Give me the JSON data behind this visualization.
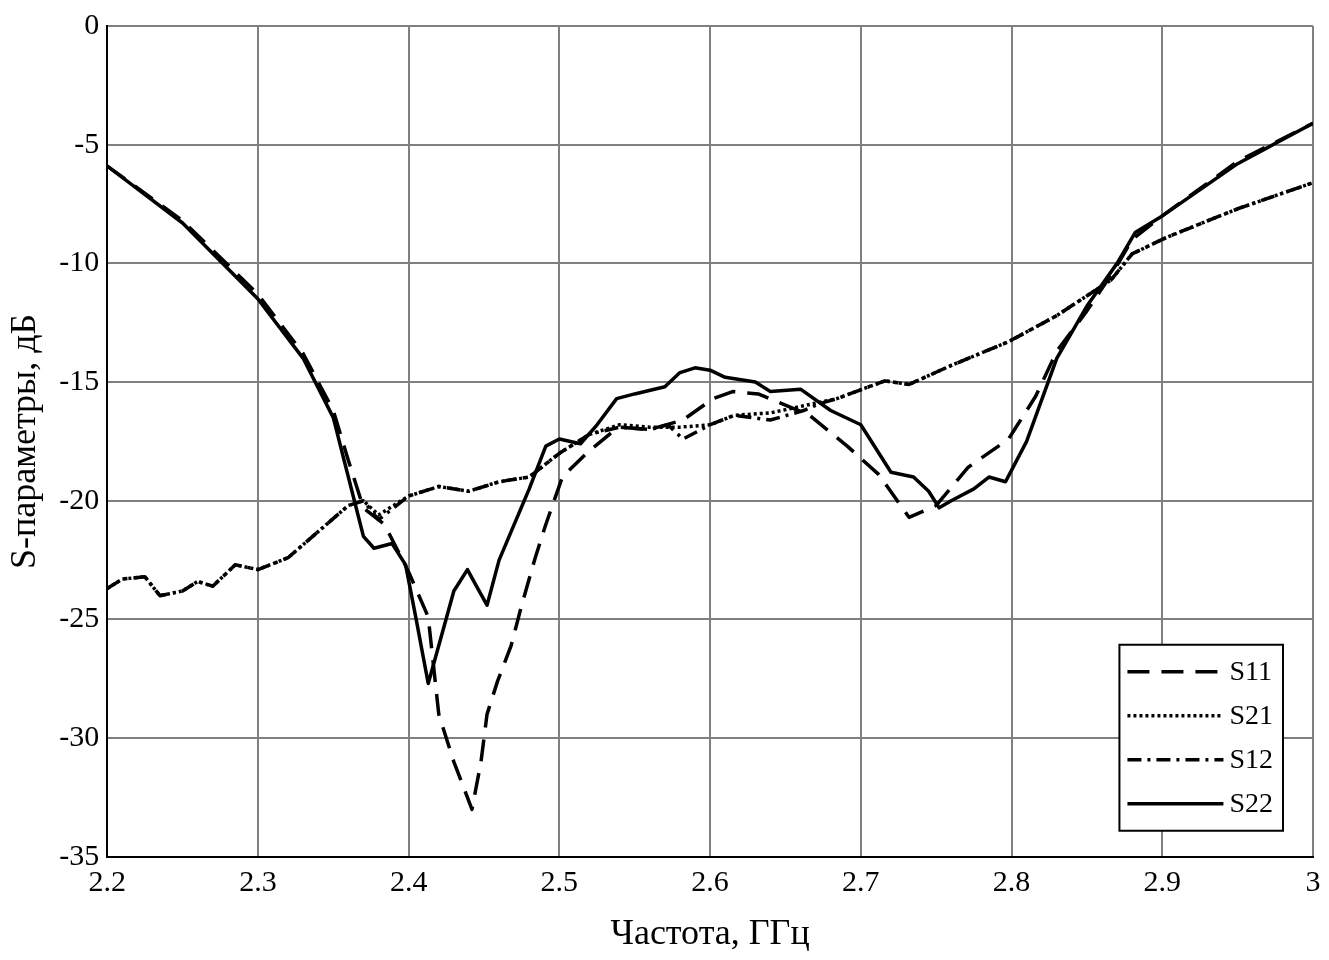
{
  "chart_data": {
    "type": "line",
    "xlabel": "Частота, ГГц",
    "ylabel": "S-параметры, дБ",
    "xlim": [
      2.2,
      3
    ],
    "xticks": [
      {
        "value": 2.2,
        "label": "2.2"
      },
      {
        "value": 2.3,
        "label": "2.3"
      },
      {
        "value": 2.4,
        "label": "2.4"
      },
      {
        "value": 2.5,
        "label": "2.5"
      },
      {
        "value": 2.6,
        "label": "2.6"
      },
      {
        "value": 2.7,
        "label": "2.7"
      },
      {
        "value": 2.8,
        "label": "2.8"
      },
      {
        "value": 2.9,
        "label": "2.9"
      },
      3
    ],
    "ylim": [
      -35,
      0
    ],
    "yticks": [
      -35,
      -30,
      -25,
      -20,
      -15,
      -10,
      -5,
      0
    ],
    "grid": true,
    "legend": "bottom right",
    "marker": "none",
    "series": [
      {
        "name": "S11",
        "color": "#000000",
        "line_style": "dashed",
        "x": [
          2.2,
          2.25,
          2.3,
          2.33,
          2.35,
          2.36,
          2.37,
          2.384,
          2.4,
          2.413,
          2.42,
          2.43,
          2.442,
          2.448,
          2.452,
          2.459,
          2.468,
          2.475,
          2.484,
          2.491,
          2.502,
          2.518,
          2.539,
          2.56,
          2.582,
          2.602,
          2.615,
          2.632,
          2.666,
          2.691,
          2.712,
          2.732,
          2.75,
          2.771,
          2.798,
          2.816,
          2.83,
          2.85,
          2.868,
          2.88,
          2.9,
          2.95,
          3.0
        ],
        "values": [
          -5.9,
          -8.2,
          -11.3,
          -13.8,
          -16.2,
          -18.3,
          -20.3,
          -21.0,
          -23.0,
          -24.9,
          -29.0,
          -31.0,
          -33.0,
          -31.0,
          -29.0,
          -27.6,
          -26.1,
          -24.4,
          -22.4,
          -21.0,
          -19.0,
          -18.0,
          -16.9,
          -17.0,
          -16.6,
          -15.7,
          -15.4,
          -15.5,
          -16.4,
          -17.7,
          -18.9,
          -20.7,
          -20.2,
          -18.6,
          -17.4,
          -15.6,
          -13.7,
          -12.0,
          -10.3,
          -9.0,
          -8.0,
          -5.7,
          -4.1
        ]
      },
      {
        "name": "S21",
        "color": "#000000",
        "line_style": "dotted",
        "x": [
          2.2,
          2.21,
          2.225,
          2.235,
          2.25,
          2.26,
          2.27,
          2.285,
          2.3,
          2.32,
          2.34,
          2.36,
          2.37,
          2.38,
          2.4,
          2.42,
          2.44,
          2.46,
          2.48,
          2.5,
          2.52,
          2.54,
          2.56,
          2.58,
          2.6,
          2.616,
          2.64,
          2.662,
          2.684,
          2.716,
          2.732,
          2.76,
          2.798,
          2.83,
          2.866,
          2.88,
          2.903,
          2.95,
          3.0
        ],
        "values": [
          -23.7,
          -23.3,
          -23.2,
          -24.0,
          -23.8,
          -23.4,
          -23.6,
          -22.7,
          -22.9,
          -22.4,
          -21.3,
          -20.2,
          -20.0,
          -20.6,
          -19.8,
          -19.4,
          -19.6,
          -19.2,
          -19.0,
          -18.0,
          -17.2,
          -16.8,
          -16.9,
          -16.9,
          -16.8,
          -16.4,
          -16.3,
          -16.0,
          -15.7,
          -14.95,
          -15.1,
          -14.3,
          -13.3,
          -12.2,
          -10.7,
          -9.6,
          -8.9,
          -7.7,
          -6.6
        ]
      },
      {
        "name": "S12",
        "color": "#000000",
        "line_style": "dashdot",
        "x": [
          2.2,
          2.21,
          2.225,
          2.235,
          2.25,
          2.26,
          2.27,
          2.285,
          2.3,
          2.32,
          2.34,
          2.36,
          2.37,
          2.38,
          2.4,
          2.42,
          2.44,
          2.46,
          2.48,
          2.5,
          2.52,
          2.54,
          2.56,
          2.572,
          2.582,
          2.6,
          2.616,
          2.64,
          2.662,
          2.673,
          2.684,
          2.716,
          2.732,
          2.76,
          2.798,
          2.83,
          2.866,
          2.88,
          2.903,
          2.95,
          3.0
        ],
        "values": [
          -23.7,
          -23.3,
          -23.2,
          -24.0,
          -23.8,
          -23.4,
          -23.6,
          -22.7,
          -22.9,
          -22.4,
          -21.3,
          -20.2,
          -20.0,
          -20.8,
          -19.8,
          -19.4,
          -19.6,
          -19.2,
          -19.0,
          -18.0,
          -17.2,
          -16.9,
          -17.0,
          -16.8,
          -17.4,
          -16.8,
          -16.4,
          -16.6,
          -16.2,
          -15.9,
          -15.7,
          -14.95,
          -15.1,
          -14.3,
          -13.3,
          -12.2,
          -10.7,
          -9.6,
          -8.9,
          -7.7,
          -6.6
        ]
      },
      {
        "name": "S22",
        "color": "#000000",
        "line_style": "solid",
        "x": [
          2.2,
          2.25,
          2.3,
          2.33,
          2.35,
          2.36,
          2.37,
          2.377,
          2.389,
          2.398,
          2.405,
          2.413,
          2.42,
          2.43,
          2.439,
          2.445,
          2.452,
          2.46,
          2.468,
          2.48,
          2.491,
          2.5,
          2.514,
          2.525,
          2.538,
          2.55,
          2.57,
          2.58,
          2.59,
          2.6,
          2.61,
          2.63,
          2.64,
          2.66,
          2.68,
          2.7,
          2.71,
          2.72,
          2.735,
          2.745,
          2.752,
          2.76,
          2.775,
          2.785,
          2.796,
          2.81,
          2.83,
          2.85,
          2.87,
          2.882,
          2.9,
          2.95,
          3.0
        ],
        "values": [
          -5.9,
          -8.3,
          -11.5,
          -14.0,
          -16.5,
          -19.0,
          -21.5,
          -22.0,
          -21.8,
          -22.7,
          -25.0,
          -27.7,
          -26.1,
          -23.8,
          -22.9,
          -23.6,
          -24.4,
          -22.5,
          -21.3,
          -19.5,
          -17.7,
          -17.4,
          -17.6,
          -16.8,
          -15.7,
          -15.5,
          -15.2,
          -14.6,
          -14.4,
          -14.5,
          -14.8,
          -15.0,
          -15.4,
          -15.3,
          -16.2,
          -16.8,
          -17.8,
          -18.8,
          -19.0,
          -19.6,
          -20.3,
          -20.0,
          -19.5,
          -19.0,
          -19.2,
          -17.5,
          -14.0,
          -11.8,
          -10.0,
          -8.7,
          -8.0,
          -5.8,
          -4.1
        ]
      }
    ]
  }
}
